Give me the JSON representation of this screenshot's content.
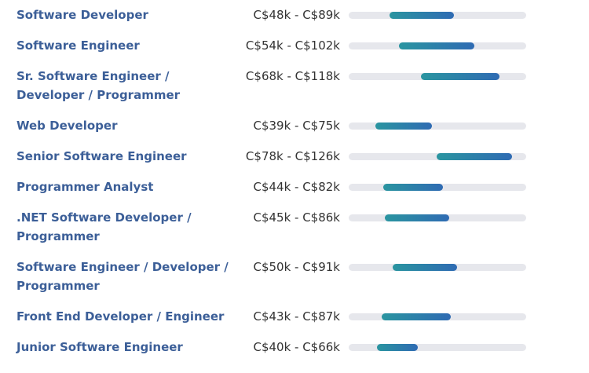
{
  "salary_scale": {
    "min_k": 22,
    "max_k": 135
  },
  "colors": {
    "title": "#3c5f98",
    "range_text": "#333333",
    "track": "#e6e7ec",
    "bar_start": "#2a95a0",
    "bar_end": "#2f6bb3"
  },
  "jobs": [
    {
      "title": "Software Developer",
      "range": "C$48k - C$89k",
      "low_k": 48,
      "high_k": 89
    },
    {
      "title": "Software Engineer",
      "range": "C$54k - C$102k",
      "low_k": 54,
      "high_k": 102
    },
    {
      "title": "Sr. Software Engineer / Developer / Programmer",
      "range": "C$68k - C$118k",
      "low_k": 68,
      "high_k": 118
    },
    {
      "title": "Web Developer",
      "range": "C$39k - C$75k",
      "low_k": 39,
      "high_k": 75
    },
    {
      "title": "Senior Software Engineer",
      "range": "C$78k - C$126k",
      "low_k": 78,
      "high_k": 126
    },
    {
      "title": "Programmer Analyst",
      "range": "C$44k - C$82k",
      "low_k": 44,
      "high_k": 82
    },
    {
      "title": ".NET Software Developer / Programmer",
      "range": "C$45k - C$86k",
      "low_k": 45,
      "high_k": 86
    },
    {
      "title": "Software Engineer / Developer / Programmer",
      "range": "C$50k - C$91k",
      "low_k": 50,
      "high_k": 91
    },
    {
      "title": "Front End Developer / Engineer",
      "range": "C$43k - C$87k",
      "low_k": 43,
      "high_k": 87
    },
    {
      "title": "Junior Software Engineer",
      "range": "C$40k - C$66k",
      "low_k": 40,
      "high_k": 66
    }
  ]
}
